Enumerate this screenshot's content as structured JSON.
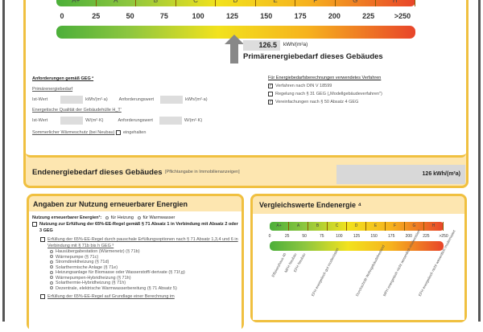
{
  "primary_scale": {
    "classes": [
      "A+",
      "A",
      "B",
      "C",
      "D",
      "E",
      "F",
      "G",
      "H"
    ],
    "ticks": [
      "0",
      "25",
      "50",
      "75",
      "100",
      "125",
      "150",
      "175",
      "200",
      "225",
      ">250"
    ]
  },
  "primary": {
    "value": "126.5",
    "unit": "kWh/(m²a)",
    "label": "Primärenergiebedarf dieses Gebäudes",
    "indicator_value": 126.5
  },
  "requirements": {
    "title": "Anforderungen gemäß GEG ²",
    "primary_label": "Primärenergiebedarf",
    "ist": "Ist-Wert",
    "unit1": "kWh/(m²·a)",
    "anf": "Anforderungswert",
    "unit2": "kWh/(m²·a)",
    "envelope_label": "Energetische Qualität der Gebäudehülle H_T'",
    "unit3": "W/(m²·K)",
    "unit4": "W/(m²·K)",
    "summer_label": "Sommerlicher Wärmeschutz (bei Neubau)",
    "summer_check": "eingehalten"
  },
  "methods": {
    "title": "Für Energiebedarfsberechnungen verwendetes Verfahren",
    "items": [
      {
        "label": "Verfahren nach DIN V 18599",
        "checked": true
      },
      {
        "label": "Regelung nach § 31 GEG („Modellgebäudeverfahren\")",
        "checked": false
      },
      {
        "label": "Vereinfachungen nach § 50 Absatz 4 GEG",
        "checked": true
      }
    ]
  },
  "final": {
    "label": "Endenergiebedarf dieses Gebäudes",
    "note": "[Pflichtangabe in Immobilienanzeigen]",
    "value": "126 kWh/(m²a)"
  },
  "renewable": {
    "title": "Angaben zur Nutzung erneuerbarer Energien",
    "usage_label": "Nutzung erneuerbarer Energien³:",
    "opt1": "für Heizung",
    "opt2": "für Warmwasser",
    "rule": "Nutzung zur Erfüllung der 65%-EE-Regel gemäß § 71 Absatz 1 in Verbindung mit Absatz 2 oder 3 GEG",
    "flat": "Erfüllung der 65%-EE-Regel durch pauschale Erfüllungsoptionen nach § 71 Absatz 1,3,4 und 6 in Verbindung mit § 71b bis h GEG ³",
    "options": [
      "Hausübergabestation (Wärmenetz) (§ 71b)",
      "Wärmepumpe (§ 71c)",
      "Stromdirektheizung (§ 71d)",
      "Solarthermische Anlage (§ 71e)",
      "Heizungsanlage für Biomasse oder Wasserstoff/-derivate (§ 71f,g)",
      "Wärmepumpen-Hybridheizung (§ 71h)",
      "Solarthermie-Hybridheizung (§ 71h)",
      "Dezentrale, elektrische Warmwasserbereitung (§ 71 Absatz 5)"
    ],
    "calc": "Erfüllung der 65%-EE-Regel auf Grundlage einer Berechnung im"
  },
  "comparison": {
    "title": "Vergleichswerte Endenergie ⁴",
    "classes": [
      "A+",
      "A",
      "B",
      "C",
      "D",
      "E",
      "F",
      "G",
      "H"
    ],
    "ticks": [
      "0",
      "25",
      "50",
      "75",
      "100",
      "125",
      "150",
      "175",
      "200",
      "225",
      ">250"
    ],
    "refs": [
      {
        "label": "Effizienzhaus 40",
        "value": 20
      },
      {
        "label": "MFH Neubau",
        "value": 35
      },
      {
        "label": "EFH Neubau",
        "value": 48
      },
      {
        "label": "EFH energetisch gut modernisiert",
        "value": 92
      },
      {
        "label": "Durchschnitt Wohngebäudebestand",
        "value": 155
      },
      {
        "label": "MFH energetisch nicht wesentlich modernisiert",
        "value": 195
      },
      {
        "label": "EFH energetisch nicht wesentlich modernisiert",
        "value": 245
      }
    ]
  },
  "colors": {
    "frame": "#f0c040",
    "band": "#fde6b0",
    "grey": "#dddddd"
  }
}
